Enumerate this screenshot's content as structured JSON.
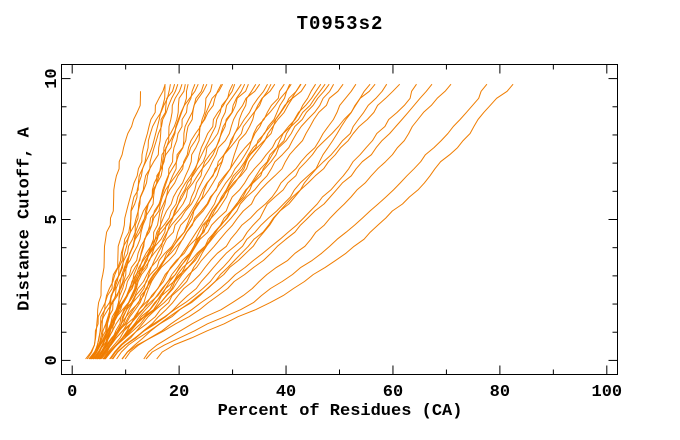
{
  "chart_data": {
    "type": "line",
    "title": "T0953s2",
    "xlabel": "Percent of Residues (CA)",
    "ylabel": "Distance Cutoff, A",
    "xlim": [
      -2,
      102
    ],
    "ylim": [
      -0.5,
      10.5
    ],
    "x_major_ticks": [
      0,
      20,
      40,
      60,
      80,
      100
    ],
    "x_minor_step": 10,
    "x_max": 100,
    "y_major_ticks": [
      0,
      5,
      10
    ],
    "y_minor_step": 1,
    "y_max": 10,
    "grid": false,
    "legend": "none",
    "line_color": "#F07D00",
    "frame_color": "#000000",
    "background_color": "#FFFFFF",
    "series_semantics": "one curve per predicted model: percent of CA residues within distance cutoff",
    "cutoffs": [
      0.4,
      2,
      4,
      6,
      8,
      10
    ],
    "curves": [
      {
        "p": [
          4.2,
          5.4,
          7.1,
          8.8,
          10.6,
          12.5
        ],
        "end": 9.7
      },
      {
        "p": [
          3.9,
          6.3,
          8.9,
          11.6,
          14.3,
          17
        ]
      },
      {
        "p": [
          4.6,
          6.8,
          9.6,
          12.4,
          15.2,
          18
        ]
      },
      {
        "p": [
          4.9,
          7.0,
          9.8,
          12.8,
          15.8,
          19
        ]
      },
      {
        "p": [
          4.8,
          7.5,
          10.7,
          13.9,
          17.0,
          20
        ]
      },
      {
        "p": [
          5.1,
          7.7,
          10.9,
          14.1,
          17.3,
          20.5
        ]
      },
      {
        "p": [
          5.6,
          8.2,
          11.4,
          14.6,
          17.8,
          21
        ]
      },
      {
        "p": [
          4.5,
          7.0,
          10.4,
          14.0,
          17.7,
          21.5
        ]
      },
      {
        "p": [
          5.3,
          8.5,
          12.2,
          15.9,
          19.1,
          22
        ]
      },
      {
        "p": [
          5.7,
          8.6,
          12.2,
          15.8,
          19.4,
          23
        ]
      },
      {
        "p": [
          4.7,
          8.0,
          11.9,
          16.0,
          20.0,
          24
        ]
      },
      {
        "p": [
          6.4,
          10.0,
          14.1,
          18.2,
          21.9,
          25
        ]
      },
      {
        "p": [
          4.9,
          8.4,
          12.8,
          17.2,
          21.6,
          26
        ]
      },
      {
        "p": [
          6.2,
          10.2,
          14.6,
          18.9,
          23.0,
          27
        ]
      },
      {
        "p": [
          5.4,
          9.2,
          13.9,
          18.6,
          23.3,
          28
        ]
      },
      {
        "p": [
          6.1,
          10.5,
          15.3,
          20.0,
          24.5,
          29
        ]
      },
      {
        "p": [
          5.0,
          9.2,
          14.4,
          19.6,
          24.8,
          30
        ]
      },
      {
        "p": [
          6.9,
          11.5,
          16.7,
          21.6,
          26.4,
          31
        ]
      },
      {
        "p": [
          5.3,
          10.1,
          15.7,
          21.2,
          26.4,
          32
        ]
      },
      {
        "p": [
          6.1,
          10.6,
          16.2,
          21.8,
          27.4,
          33
        ]
      },
      {
        "p": [
          6.1,
          11.4,
          17.4,
          23.1,
          28.6,
          34
        ]
      },
      {
        "p": [
          6.4,
          12.0,
          18.1,
          24.0,
          29.6,
          35
        ]
      },
      {
        "p": [
          5.3,
          10.4,
          16.8,
          23.2,
          29.6,
          36
        ]
      },
      {
        "p": [
          7.6,
          13.5,
          20.0,
          26.0,
          31.5,
          37
        ]
      },
      {
        "p": [
          5.9,
          12.0,
          18.9,
          25.5,
          31.8,
          38
        ]
      },
      {
        "p": [
          6.7,
          13.0,
          19.9,
          26.4,
          32.6,
          39
        ]
      },
      {
        "p": [
          6.5,
          12.8,
          20.1,
          26.9,
          33.5,
          40
        ]
      },
      {
        "p": [
          7.4,
          14.2,
          21.5,
          28.3,
          34.8,
          41
        ]
      },
      {
        "p": [
          6.0,
          12.9,
          20.6,
          28.0,
          35.0,
          42
        ]
      },
      {
        "p": [
          7.6,
          14.3,
          21.9,
          29.2,
          36.2,
          43
        ]
      },
      {
        "p": [
          6.6,
          14.2,
          22.4,
          29.9,
          37.1,
          44
        ]
      },
      {
        "p": [
          7.2,
          14.4,
          22.5,
          30.2,
          37.7,
          45
        ]
      },
      {
        "p": [
          7.2,
          15.1,
          23.5,
          31.4,
          38.8,
          46
        ]
      },
      {
        "p": [
          7.3,
          14.9,
          23.4,
          31.5,
          39.4,
          47
        ]
      },
      {
        "p": [
          7.4,
          16.1,
          25.1,
          33.3,
          40.8,
          48
        ]
      },
      {
        "p": [
          8.4,
          16.6,
          25.5,
          33.7,
          41.5,
          49
        ]
      },
      {
        "p": [
          7.5,
          16.7,
          26.1,
          34.6,
          42.5,
          50
        ]
      },
      {
        "p": [
          8.6,
          18.0,
          27.6,
          36.3,
          44.3,
          52
        ]
      },
      {
        "p": [
          9.0,
          19.4,
          29.4,
          38.3,
          46.4,
          54
        ]
      },
      {
        "p": [
          8.9,
          19.1,
          29.5,
          38.9,
          47.7,
          56
        ]
      },
      {
        "p": [
          8.9,
          20.2,
          31.2,
          40.8,
          49.7,
          58
        ]
      },
      {
        "p": [
          10.8,
          22.8,
          34.0,
          43.4,
          52.0,
          60
        ]
      },
      {
        "p": [
          9.7,
          21.7,
          33.4,
          43.7,
          53.1,
          62
        ]
      },
      {
        "p": [
          11.3,
          24.4,
          36.6,
          46.9,
          56.3,
          65
        ]
      },
      {
        "p": [
          10.7,
          24.7,
          37.7,
          48.7,
          58.7,
          68
        ]
      },
      {
        "p": [
          14.8,
          30.5,
          43.7,
          54.3,
          63.6,
          72
        ]
      },
      {
        "p": [
          15.2,
          32.5,
          46.9,
          58.6,
          68.8,
          78
        ]
      },
      {
        "p": [
          17.2,
          36.0,
          51.5,
          63.8,
          74.4,
          84
        ]
      }
    ]
  }
}
